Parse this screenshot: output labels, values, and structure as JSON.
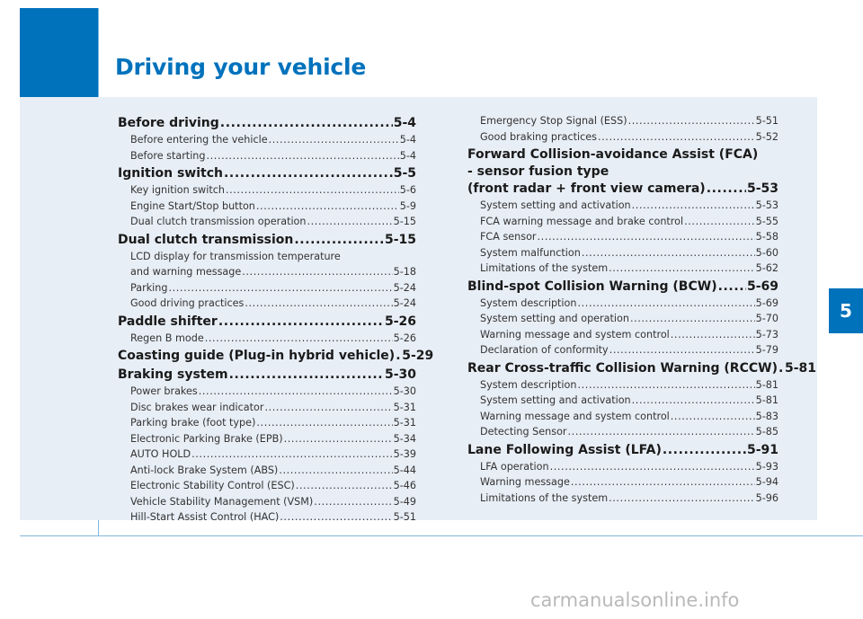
{
  "header": {
    "title": "Driving your vehicle"
  },
  "chapter_badge": "5",
  "toc": {
    "left": [
      {
        "title": "Before driving",
        "page": "5-4",
        "items": [
          {
            "title": "Before entering the vehicle",
            "page": "5-4"
          },
          {
            "title": "Before starting",
            "page": "5-4"
          }
        ]
      },
      {
        "title": "Ignition switch",
        "page": "5-5",
        "items": [
          {
            "title": "Key ignition switch",
            "page": "5-6"
          },
          {
            "title": "Engine Start/Stop button",
            "page": "5-9"
          },
          {
            "title": "Dual clutch transmission operation",
            "page": "5-15"
          }
        ]
      },
      {
        "title": "Dual clutch transmission",
        "page": "5-15",
        "items": [
          {
            "title_lines": [
              "LCD display for transmission temperature",
              "and warning message"
            ],
            "page": "5-18"
          },
          {
            "title": "Parking",
            "page": "5-24"
          },
          {
            "title": "Good driving practices",
            "page": "5-24"
          }
        ]
      },
      {
        "title": "Paddle shifter",
        "page": "5-26",
        "items": [
          {
            "title": "Regen B mode",
            "page": "5-26"
          }
        ]
      },
      {
        "title": "Coasting guide (Plug-in hybrid vehicle)",
        "page": "5-29",
        "items": []
      },
      {
        "title": "Braking system",
        "page": "5-30",
        "items": [
          {
            "title": "Power brakes",
            "page": "5-30"
          },
          {
            "title": "Disc brakes wear indicator",
            "page": "5-31"
          },
          {
            "title": "Parking brake (foot type)",
            "page": "5-31"
          },
          {
            "title": "Electronic Parking Brake (EPB)",
            "page": "5-34"
          },
          {
            "title": "AUTO HOLD",
            "page": "5-39"
          },
          {
            "title": "Anti-lock Brake System (ABS)",
            "page": "5-44"
          },
          {
            "title": "Electronic Stability Control (ESC)",
            "page": "5-46"
          },
          {
            "title": "Vehicle Stability Management (VSM)",
            "page": "5-49"
          },
          {
            "title": "Hill-Start Assist Control (HAC)",
            "page": "5-51"
          }
        ]
      }
    ],
    "right_continued": [
      {
        "title": "Emergency Stop Signal (ESS)",
        "page": "5-51"
      },
      {
        "title": "Good braking practices",
        "page": "5-52"
      }
    ],
    "right": [
      {
        "title_lines": [
          "Forward Collision-avoidance Assist (FCA)",
          "- sensor fusion type",
          "(front radar + front view camera)"
        ],
        "page": "5-53",
        "items": [
          {
            "title": "System setting and activation",
            "page": "5-53"
          },
          {
            "title": "FCA warning message and brake control",
            "page": "5-55"
          },
          {
            "title": "FCA sensor",
            "page": "5-58"
          },
          {
            "title": "System malfunction",
            "page": "5-60"
          },
          {
            "title": "Limitations of the system",
            "page": "5-62"
          }
        ]
      },
      {
        "title": "Blind-spot Collision Warning (BCW)",
        "page": "5-69",
        "items": [
          {
            "title": "System description",
            "page": "5-69"
          },
          {
            "title": "System setting and operation",
            "page": "5-70"
          },
          {
            "title": "Warning message and system control",
            "page": "5-73"
          },
          {
            "title": "Declaration of conformity",
            "page": "5-79"
          }
        ]
      },
      {
        "title": "Rear Cross-traffic Collision Warning (RCCW)",
        "page": "5-81",
        "items": [
          {
            "title": "System description",
            "page": "5-81"
          },
          {
            "title": "System setting and activation",
            "page": "5-81"
          },
          {
            "title": "Warning message and system control",
            "page": "5-83"
          },
          {
            "title": "Detecting Sensor",
            "page": "5-85"
          }
        ]
      },
      {
        "title": "Lane Following Assist (LFA)",
        "page": "5-91",
        "items": [
          {
            "title": "LFA operation",
            "page": "5-93"
          },
          {
            "title": "Warning message",
            "page": "5-94"
          },
          {
            "title": "Limitations of the system",
            "page": "5-96"
          }
        ]
      }
    ]
  },
  "watermark": "carmanualsonline.info"
}
